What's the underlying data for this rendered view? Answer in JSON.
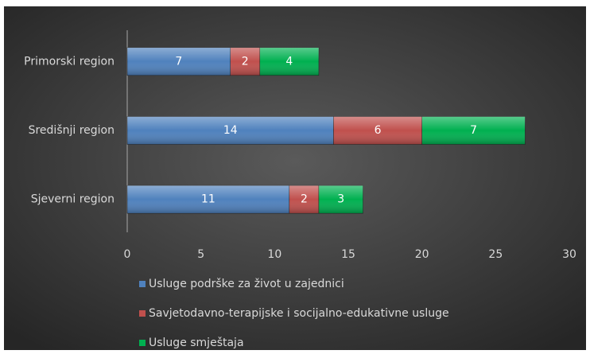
{
  "chart_data": {
    "type": "stacked_bar_horizontal",
    "categories": [
      "Primorski region",
      "Središnji region",
      "Sjeverni region"
    ],
    "series": [
      {
        "name": "Usluge podrške za život u zajednici",
        "color": "#4f81bd",
        "values": [
          7,
          14,
          11
        ]
      },
      {
        "name": "Savjetodavno-terapijske i socijalno-edukativne usluge",
        "color": "#c0504d",
        "values": [
          2,
          6,
          2
        ]
      },
      {
        "name": "Usluge smještaja",
        "color": "#00b050",
        "values": [
          4,
          7,
          3
        ]
      }
    ],
    "xlim": [
      0,
      30
    ],
    "xticks": [
      0,
      5,
      10,
      15,
      20,
      25,
      30
    ],
    "grid": false,
    "legend": "bottom"
  }
}
